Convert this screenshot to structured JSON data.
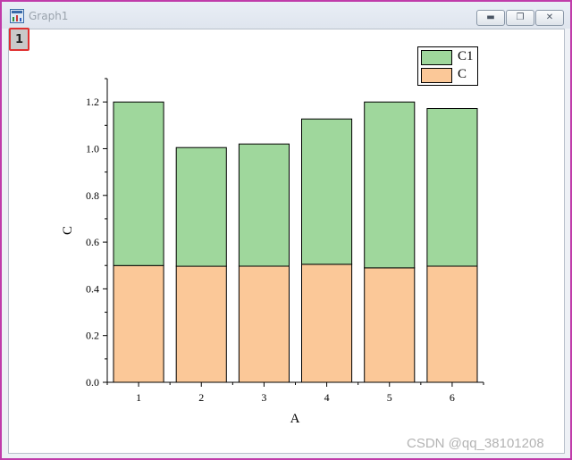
{
  "window": {
    "title": "Graph1",
    "layer_badge": "1",
    "buttons": {
      "minimize_icon": "minimize-icon",
      "maximize_icon": "restore-icon",
      "close_icon": "close-icon"
    }
  },
  "watermark": "CSDN @qq_38101208",
  "chart_data": {
    "type": "bar",
    "stacked": true,
    "categories": [
      "1",
      "2",
      "3",
      "4",
      "5",
      "6"
    ],
    "series": [
      {
        "name": "C",
        "color": "#fbc898",
        "values": [
          0.5,
          0.497,
          0.497,
          0.505,
          0.49,
          0.497
        ]
      },
      {
        "name": "C1",
        "color": "#9fd79c",
        "values": [
          0.7,
          0.508,
          0.523,
          0.622,
          0.71,
          0.675
        ]
      }
    ],
    "xlabel": "A",
    "ylabel": "C",
    "ylim": [
      0,
      1.3
    ],
    "yticks": [
      "0.0",
      "0.2",
      "0.4",
      "0.6",
      "0.8",
      "1.0",
      "1.2"
    ],
    "legend_position": "top-right",
    "grid": false
  }
}
